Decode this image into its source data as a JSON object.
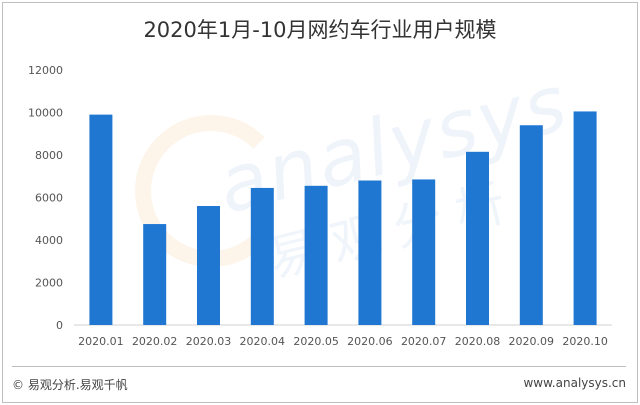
{
  "chart_data": {
    "type": "bar",
    "title": "2020年1月-10月网约车行业用户规模",
    "categories": [
      "2020.01",
      "2020.02",
      "2020.03",
      "2020.04",
      "2020.05",
      "2020.06",
      "2020.07",
      "2020.08",
      "2020.09",
      "2020.10"
    ],
    "values": [
      9900,
      4750,
      5600,
      6450,
      6550,
      6800,
      6850,
      8150,
      9400,
      10050
    ],
    "yticks": [
      "0",
      "2000",
      "4000",
      "6000",
      "8000",
      "10000",
      "12000"
    ],
    "ylim": [
      0,
      12000
    ],
    "bar_color": "#1f77d2",
    "grid": false,
    "legend": "none"
  },
  "footer": {
    "left": "© 易观分析.易观千帆",
    "right": "www.analysys.cn"
  },
  "watermark": {
    "text": "analysys",
    "cn": "易观分析"
  }
}
